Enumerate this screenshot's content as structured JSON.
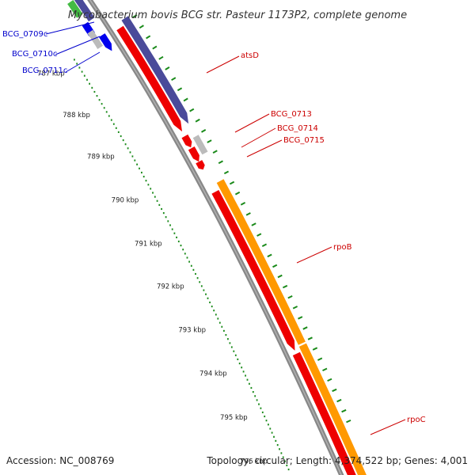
{
  "title": "Mycobacterium bovis BCG str. Pasteur 1173P2, complete genome",
  "footer": {
    "accession": "Accession: NC_008769",
    "topology": "Topology: circular; Length: 4,374,522 bp; Genes: 4,001"
  },
  "scale_labels": [
    "787 kbp",
    "788 kbp",
    "789 kbp",
    "790 kbp",
    "791 kbp",
    "792 kbp",
    "793 kbp",
    "794 kbp",
    "795 kbp",
    "796 kbp"
  ],
  "left_genes": [
    "BCG_0709c",
    "BCG_0710c",
    "BCG_0711c"
  ],
  "right_genes": [
    "atsD",
    "BCG_0713",
    "BCG_0714",
    "BCG_0715",
    "rpoB",
    "rpoC"
  ],
  "colors": {
    "backbone": "#888888",
    "scale_ticks": "#1a8a1a",
    "reverse_strand": "#0000ee",
    "reverse_label": "#0000cc",
    "forward_label": "#cc0000",
    "cds": "#ee0000",
    "gene_blue": "#4a4a9a",
    "gene_orange": "#ff9900",
    "gene_grey": "#bbbbbb",
    "gene_green": "#44bb44"
  }
}
